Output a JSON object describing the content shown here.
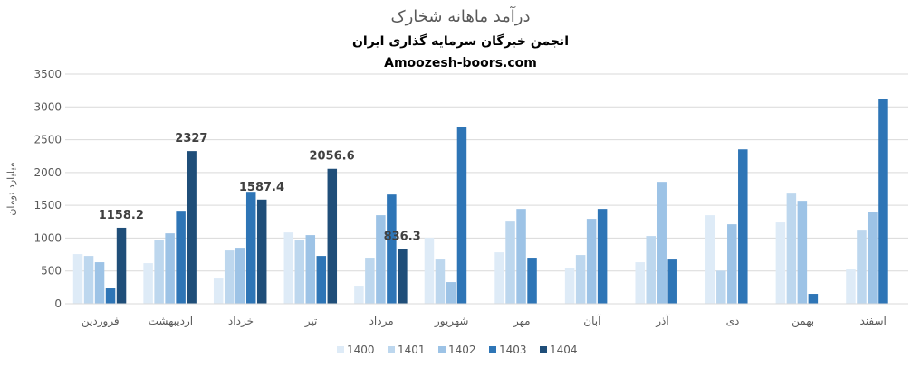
{
  "chart_data": {
    "type": "bar",
    "title": "درآمد ماهانه شخارک",
    "subtitle": "انجمن خبرگان سرمایه گذاری ایران",
    "subtitle2": "Amoozesh-boors.com",
    "ylabel": "میلیارد تومان",
    "xlabel": "",
    "ylim": [
      0,
      3500
    ],
    "yticks": [
      0,
      500,
      1000,
      1500,
      2000,
      2500,
      3000,
      3500
    ],
    "grid": true,
    "legend": "bottom",
    "categories": [
      "فروردین",
      "اردیبهشت",
      "خرداد",
      "تیر",
      "مرداد",
      "شهریور",
      "مهر",
      "آبان",
      "آذر",
      "دی",
      "بهمن",
      "اسفند"
    ],
    "series": [
      {
        "name": "1400",
        "color": "#deebf7",
        "values": [
          757,
          619,
          385,
          1087,
          275,
          1005,
          784,
          550,
          633,
          1349,
          1239,
          523
        ]
      },
      {
        "name": "1401",
        "color": "#bdd7ee",
        "values": [
          729,
          977,
          812,
          977,
          702,
          674,
          1252,
          743,
          1032,
          505,
          1679,
          1128
        ]
      },
      {
        "name": "1402",
        "color": "#9dc3e6",
        "values": [
          633,
          1073,
          853,
          1046,
          1349,
          330,
          1445,
          1294,
          1858,
          1211,
          1569,
          1404
        ]
      },
      {
        "name": "1403",
        "color": "#2e75b6",
        "values": [
          234,
          1417,
          1706,
          729,
          1665,
          2697,
          702,
          1445,
          674,
          2353,
          151,
          3124
        ]
      },
      {
        "name": "1404",
        "color": "#1f4e79",
        "values": [
          1158.2,
          2327,
          1587.4,
          2056.6,
          836.3,
          null,
          null,
          null,
          null,
          null,
          null,
          null
        ]
      }
    ],
    "data_labels": {
      "series": "1404",
      "values": [
        "1158.2",
        "2327",
        "1587.4",
        "2056.6",
        "836.3"
      ]
    }
  }
}
